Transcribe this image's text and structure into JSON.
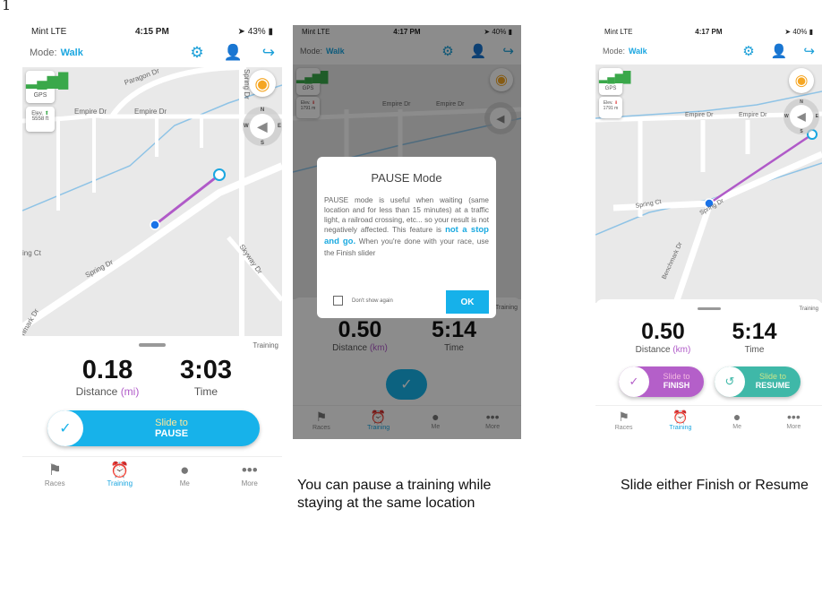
{
  "corner_marker": "1",
  "colors": {
    "accent": "#1aa6e0",
    "track": "#b05ac8",
    "finish": "#b45fc9",
    "resume": "#3fb8a8",
    "pause": "#16b1ea"
  },
  "phones": [
    {
      "status": {
        "carrier": "Mint  LTE",
        "time": "4:15 PM",
        "battery": "43%"
      },
      "mode_label": "Mode:",
      "mode_value": "Walk",
      "map_labels": [
        "Paragon Dr",
        "Spring Dr",
        "Empire Dr",
        "Empire Dr",
        "ing Ct",
        "Spring Dr",
        "Skyway Dr",
        "hmark Dr"
      ],
      "gps_label": "GPS",
      "elev_label": "Elev.",
      "elev_value": "5558 ft",
      "elev_trend": "up",
      "compass": {
        "n": "N",
        "w": "W",
        "e": "E",
        "s": "S"
      },
      "tag": "Training",
      "distance": "0.18",
      "distance_label": "Distance",
      "distance_unit": "(mi)",
      "time": "3:03",
      "time_label": "Time",
      "slider": {
        "line1": "Slide to",
        "line2": "PAUSE"
      },
      "tabs": [
        "Races",
        "Training",
        "Me",
        "More"
      ],
      "active_tab": "Training"
    },
    {
      "status": {
        "carrier": "Mint  LTE",
        "time": "4:17 PM",
        "battery": "40%"
      },
      "mode_label": "Mode:",
      "mode_value": "Walk",
      "map_labels": [
        "Empire Dr",
        "Empire Dr"
      ],
      "gps_label": "GPS",
      "elev_label": "Elev.",
      "elev_value": "1791 m",
      "elev_trend": "down",
      "tag": "Training",
      "distance": "0.50",
      "distance_label": "Distance",
      "distance_unit": "(km)",
      "time": "5:14",
      "time_label": "Time",
      "tabs": [
        "Races",
        "Training",
        "Me",
        "More"
      ],
      "active_tab": "Training",
      "dialog": {
        "title": "PAUSE Mode",
        "body_start": "PAUSE mode is useful when waiting (same location and for less than 15 minutes) at a traffic light, a railroad crossing, etc... so your result is not negatively affected. This feature is ",
        "body_highlight": "not a stop and go.",
        "body_end": " When you're done with your race, use the Finish slider",
        "checkbox_label": "Don't show again",
        "ok": "OK"
      }
    },
    {
      "status": {
        "carrier": "Mint  LTE",
        "time": "4:17 PM",
        "battery": "40%"
      },
      "mode_label": "Mode:",
      "mode_value": "Walk",
      "map_labels": [
        "Empire Dr",
        "Empire Dr",
        "Spring Ct",
        "Spring Dr",
        "Benchmark Dr"
      ],
      "gps_label": "GPS",
      "elev_label": "Elev.",
      "elev_value": "1791 m",
      "elev_trend": "down",
      "compass": {
        "n": "N",
        "w": "W",
        "e": "E",
        "s": "S"
      },
      "tag": "Training",
      "distance": "0.50",
      "distance_label": "Distance",
      "distance_unit": "(km)",
      "time": "5:14",
      "time_label": "Time",
      "finish_slider": {
        "line1": "Slide to",
        "line2": "FINISH"
      },
      "resume_slider": {
        "line1": "Slide to",
        "line2": "RESUME"
      },
      "tabs": [
        "Races",
        "Training",
        "Me",
        "More"
      ],
      "active_tab": "Training"
    }
  ],
  "captions": {
    "pause": "You can pause a training while staying at the same location",
    "finish": "Slide either Finish or Resume"
  }
}
